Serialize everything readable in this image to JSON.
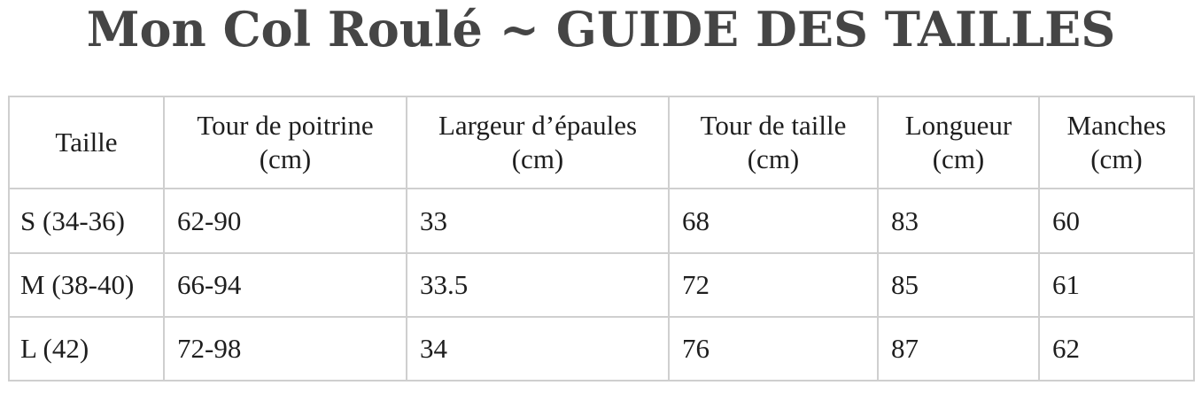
{
  "title": "Mon Col Roulé ~ GUIDE DES TAILLES",
  "table": {
    "headers": [
      {
        "line1": "Taille",
        "line2": ""
      },
      {
        "line1": "Tour de poitrine",
        "line2": "(cm)"
      },
      {
        "line1": "Largeur d’épaules",
        "line2": "(cm)"
      },
      {
        "line1": "Tour de taille",
        "line2": "(cm)"
      },
      {
        "line1": "Longueur",
        "line2": "(cm)"
      },
      {
        "line1": "Manches",
        "line2": "(cm)"
      }
    ],
    "rows": [
      [
        "S (34-36)",
        "62-90",
        "33",
        "68",
        "83",
        "60"
      ],
      [
        "M (38-40)",
        "66-94",
        "33.5",
        "72",
        "85",
        "61"
      ],
      [
        "L (42)",
        "72-98",
        "34",
        "76",
        "87",
        "62"
      ]
    ]
  }
}
